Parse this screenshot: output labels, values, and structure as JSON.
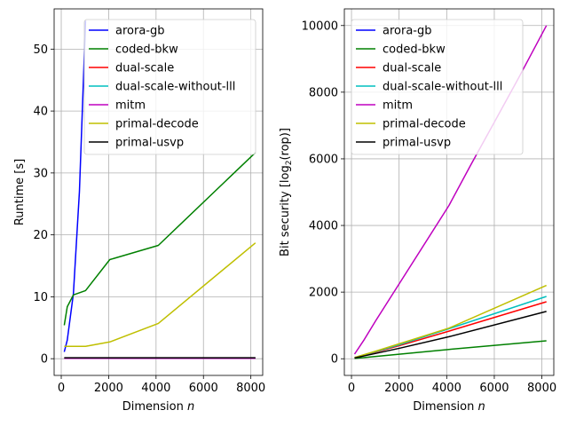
{
  "chart_data": [
    {
      "type": "line",
      "xlabel": "Dimension",
      "xlabel_var": "n",
      "ylabel": "Runtime [s]",
      "xlim": [
        -300,
        8500
      ],
      "ylim": [
        -2.7,
        56.5
      ],
      "xticks": [
        0,
        2000,
        4000,
        6000,
        8000
      ],
      "xtick_labels": [
        "0",
        "2000",
        "4000",
        "6000",
        "8000"
      ],
      "yticks": [
        0,
        10,
        20,
        30,
        40,
        50
      ],
      "ytick_labels": [
        "0",
        "10",
        "20",
        "30",
        "40",
        "50"
      ],
      "grid": true,
      "legend_position": "top-right",
      "series": [
        {
          "name": "arora-gb",
          "color": "#0000ff",
          "x": [
            128,
            256,
            512,
            768,
            1024
          ],
          "y": [
            1.1,
            3.0,
            10.5,
            27.0,
            54.6
          ]
        },
        {
          "name": "coded-bkw",
          "color": "#008000",
          "x": [
            128,
            256,
            512,
            1024,
            2048,
            4096,
            8192
          ],
          "y": [
            5.4,
            8.4,
            10.3,
            11.0,
            16.0,
            18.3,
            33.3
          ]
        },
        {
          "name": "dual-scale",
          "color": "#ff0000",
          "x": [
            128,
            256,
            512,
            1024,
            2048,
            4096,
            8192
          ],
          "y": [
            0.1,
            0.1,
            0.1,
            0.1,
            0.1,
            0.1,
            0.1
          ]
        },
        {
          "name": "dual-scale-without-lll",
          "color": "#00bfbf",
          "x": [
            128,
            256,
            512,
            1024,
            2048,
            4096,
            8192
          ],
          "y": [
            0.1,
            0.1,
            0.1,
            0.1,
            0.1,
            0.1,
            0.1
          ]
        },
        {
          "name": "mitm",
          "color": "#bf00bf",
          "x": [
            128,
            256,
            512,
            1024,
            2048,
            4096,
            8192
          ],
          "y": [
            0.05,
            0.05,
            0.05,
            0.05,
            0.05,
            0.05,
            0.05
          ]
        },
        {
          "name": "primal-decode",
          "color": "#bfbf00",
          "x": [
            128,
            256,
            512,
            1024,
            2048,
            4096,
            8192
          ],
          "y": [
            2.0,
            2.0,
            2.0,
            2.0,
            2.7,
            5.7,
            18.7
          ]
        },
        {
          "name": "primal-usvp",
          "color": "#000000",
          "x": [
            128,
            256,
            512,
            1024,
            2048,
            4096,
            8192
          ],
          "y": [
            0.15,
            0.15,
            0.15,
            0.15,
            0.15,
            0.15,
            0.15
          ]
        }
      ]
    },
    {
      "type": "line",
      "xlabel": "Dimension",
      "xlabel_var": "n",
      "ylabel": "Bit security [log2(rop)]",
      "xlim": [
        -300,
        8500
      ],
      "ylim": [
        -500,
        10500
      ],
      "xticks": [
        0,
        2000,
        4000,
        6000,
        8000
      ],
      "xtick_labels": [
        "0",
        "2000",
        "4000",
        "6000",
        "8000"
      ],
      "yticks": [
        0,
        2000,
        4000,
        6000,
        8000,
        10000
      ],
      "ytick_labels": [
        "0",
        "2000",
        "4000",
        "6000",
        "8000",
        "10000"
      ],
      "grid": true,
      "legend_position": "top-left",
      "series": [
        {
          "name": "arora-gb",
          "color": "#0000ff",
          "x": [],
          "y": []
        },
        {
          "name": "coded-bkw",
          "color": "#008000",
          "x": [
            128,
            1024,
            2048,
            4096,
            8192
          ],
          "y": [
            10,
            70,
            140,
            280,
            540
          ]
        },
        {
          "name": "dual-scale",
          "color": "#ff0000",
          "x": [
            128,
            1024,
            2048,
            4096,
            8192
          ],
          "y": [
            30,
            200,
            400,
            830,
            1710
          ]
        },
        {
          "name": "dual-scale-without-lll",
          "color": "#00bfbf",
          "x": [
            128,
            1024,
            2048,
            4096,
            8192
          ],
          "y": [
            35,
            215,
            430,
            900,
            1870
          ]
        },
        {
          "name": "mitm",
          "color": "#bf00bf",
          "x": [
            128,
            512,
            1024,
            2048,
            4096,
            5000,
            6000,
            7000,
            8192
          ],
          "y": [
            140,
            550,
            1150,
            2300,
            4600,
            5800,
            7100,
            8400,
            10000
          ]
        },
        {
          "name": "primal-decode",
          "color": "#bfbf00",
          "x": [
            128,
            1024,
            2048,
            4096,
            8192
          ],
          "y": [
            35,
            230,
            460,
            920,
            2200
          ]
        },
        {
          "name": "primal-usvp",
          "color": "#000000",
          "x": [
            128,
            1024,
            2048,
            4096,
            8192
          ],
          "y": [
            25,
            160,
            320,
            660,
            1420
          ]
        }
      ]
    }
  ]
}
